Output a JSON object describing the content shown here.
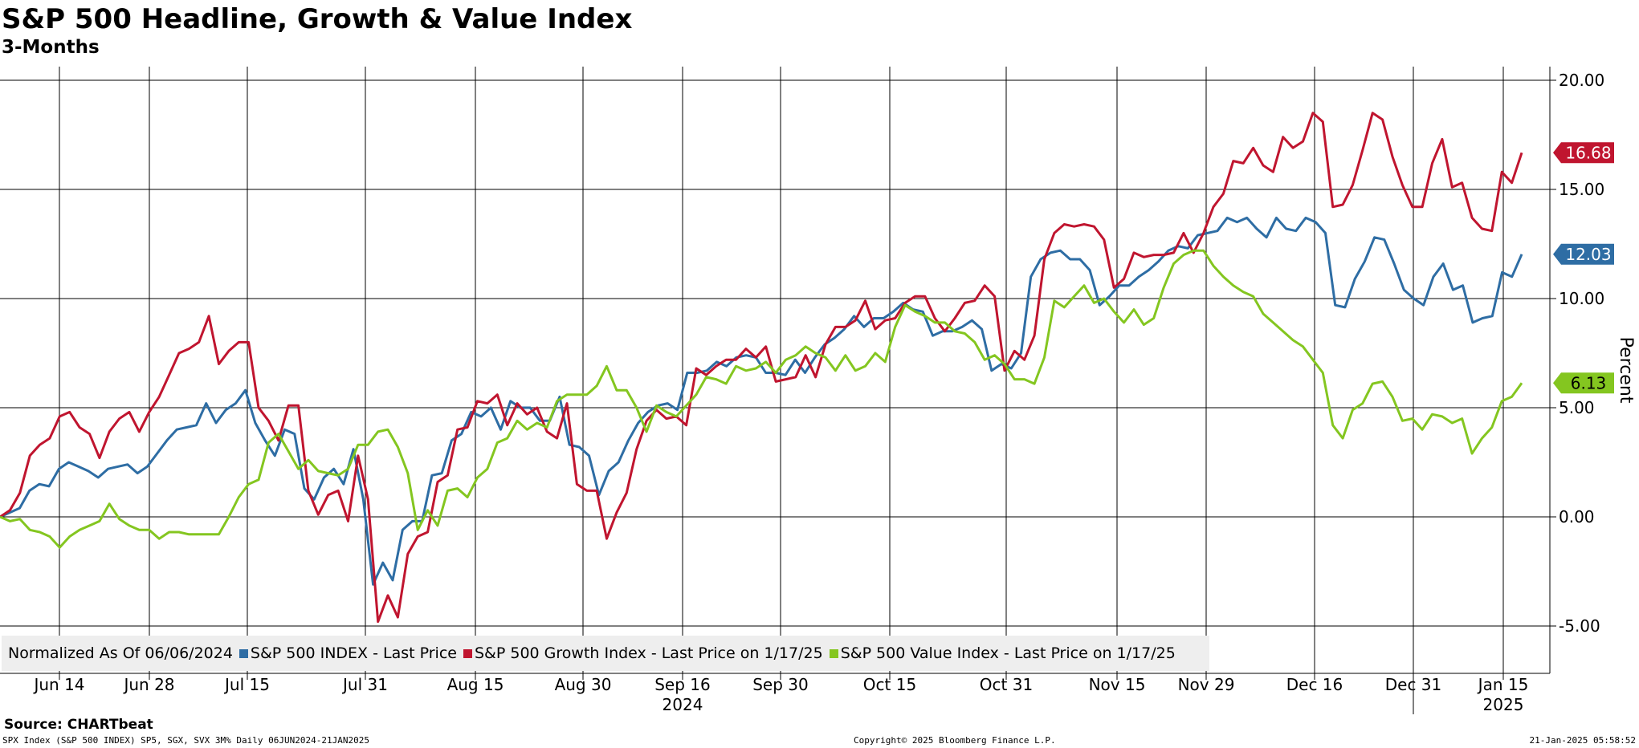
{
  "title": "S&P 500 Headline, Growth & Value Index",
  "subtitle": "3-Months",
  "legend": {
    "prefix": "Normalized As Of 06/06/2024",
    "entries": [
      "S&P 500 INDEX - Last Price",
      "S&P 500 Growth Index - Last Price on 1/17/25",
      "S&P 500 Value Index - Last Price on 1/17/25"
    ]
  },
  "source": "Source: CHARTbeat",
  "footer": {
    "left": "SPX Index (S&P 500 INDEX) SP5, SGX, SVX 3M%  Daily 06JUN2024-21JAN2025",
    "center": "Copyright© 2025 Bloomberg Finance L.P.",
    "right": "21-Jan-2025 05:58:52"
  },
  "chart_data": {
    "type": "line",
    "title": "S&P 500 Headline, Growth & Value Index",
    "subtitle": "3-Months",
    "ylabel": "Percent",
    "y_axis_side": "right",
    "ylim": [
      -7,
      21
    ],
    "yticks": [
      20,
      15,
      10,
      5,
      0,
      -5
    ],
    "ytick_labels": [
      "20.00",
      "15.00",
      "10.00",
      "5.00",
      "0.00",
      "-5.00"
    ],
    "x_ticks": [
      "Jun 14",
      "Jun 28",
      "Jul 15",
      "Jul 31",
      "Aug 15",
      "Aug 30",
      "Sep 16",
      "Sep 30",
      "Oct 15",
      "Oct 31",
      "Nov 15",
      "Nov 29",
      "Dec 16",
      "Dec 31",
      "Jan 15"
    ],
    "x_year_labels": [
      {
        "label": "2024",
        "anchor": "Sep 16"
      },
      {
        "label": "2025",
        "anchor": "Jan 15"
      }
    ],
    "grid": true,
    "legend_position": "bottom-left",
    "series": [
      {
        "name": "S&P 500 INDEX - Last Price",
        "color": "#2e6da4",
        "last_value": "12.03",
        "values": [
          0.0,
          0.2,
          0.4,
          1.2,
          1.5,
          1.4,
          2.2,
          2.5,
          2.3,
          2.1,
          1.8,
          2.2,
          2.3,
          2.4,
          2.0,
          2.3,
          2.9,
          3.5,
          4.0,
          4.1,
          4.2,
          5.2,
          4.3,
          4.9,
          5.2,
          5.8,
          4.3,
          3.5,
          2.8,
          4.0,
          3.8,
          1.3,
          0.8,
          1.8,
          2.2,
          1.5,
          3.1,
          0.8,
          -3.1,
          -2.1,
          -2.9,
          -0.6,
          -0.2,
          -0.2,
          1.9,
          2.0,
          3.5,
          3.8,
          4.8,
          4.6,
          5.0,
          4.0,
          5.3,
          5.0,
          5.0,
          4.4,
          4.4,
          5.5,
          3.3,
          3.2,
          2.8,
          1.0,
          2.1,
          2.5,
          3.5,
          4.3,
          4.8,
          5.1,
          5.2,
          4.9,
          6.6,
          6.6,
          6.7,
          7.1,
          6.9,
          7.3,
          7.4,
          7.3,
          6.6,
          6.6,
          6.5,
          7.2,
          6.6,
          7.3,
          7.9,
          8.2,
          8.6,
          9.2,
          8.7,
          9.1,
          9.1,
          9.4,
          9.8,
          9.5,
          9.4,
          8.3,
          8.5,
          8.5,
          8.7,
          9.0,
          8.6,
          6.7,
          7.0,
          6.8,
          7.5,
          11.0,
          11.8,
          12.1,
          12.2,
          11.8,
          11.8,
          11.3,
          9.7,
          10.1,
          10.6,
          10.6,
          11.0,
          11.3,
          11.7,
          12.2,
          12.4,
          12.3,
          12.9,
          13.0,
          13.1,
          13.7,
          13.5,
          13.7,
          13.2,
          12.8,
          13.7,
          13.2,
          13.1,
          13.7,
          13.5,
          13.0,
          9.7,
          9.6,
          10.9,
          11.7,
          12.8,
          12.7,
          11.6,
          10.4,
          10.0,
          9.7,
          11.0,
          11.6,
          10.4,
          10.6,
          8.9,
          9.1,
          9.2,
          11.2,
          11.0,
          12.03
        ]
      },
      {
        "name": "S&P 500 Growth Index - Last Price on 1/17/25",
        "color": "#c0152f",
        "last_value": "16.68",
        "values": [
          0.0,
          0.3,
          1.1,
          2.8,
          3.3,
          3.6,
          4.6,
          4.8,
          4.1,
          3.8,
          2.7,
          3.9,
          4.5,
          4.8,
          3.9,
          4.8,
          5.5,
          6.5,
          7.5,
          7.7,
          8.0,
          9.2,
          7.0,
          7.6,
          8.0,
          8.0,
          5.0,
          4.4,
          3.5,
          5.1,
          5.1,
          1.2,
          0.1,
          1.0,
          1.2,
          -0.2,
          2.8,
          0.8,
          -4.8,
          -3.6,
          -4.6,
          -1.7,
          -0.9,
          -0.7,
          1.6,
          1.9,
          4.0,
          4.1,
          5.3,
          5.2,
          5.6,
          4.2,
          5.2,
          4.7,
          5.0,
          3.9,
          3.6,
          5.2,
          1.5,
          1.2,
          1.2,
          -1.0,
          0.2,
          1.1,
          3.1,
          4.4,
          4.9,
          4.5,
          4.6,
          4.2,
          6.8,
          6.5,
          6.9,
          7.2,
          7.2,
          7.7,
          7.3,
          7.8,
          6.2,
          6.3,
          6.4,
          7.4,
          6.4,
          7.9,
          8.7,
          8.7,
          9.0,
          9.9,
          8.6,
          9.0,
          9.1,
          9.8,
          10.1,
          10.1,
          9.1,
          8.5,
          9.1,
          9.8,
          9.9,
          10.6,
          10.1,
          6.7,
          7.6,
          7.2,
          8.3,
          11.8,
          13.0,
          13.4,
          13.3,
          13.4,
          13.3,
          12.7,
          10.5,
          10.9,
          12.1,
          11.9,
          12.0,
          12.0,
          12.1,
          13.0,
          12.1,
          13.0,
          14.2,
          14.8,
          16.3,
          16.2,
          16.9,
          16.1,
          15.8,
          17.4,
          16.9,
          17.2,
          18.5,
          18.1,
          14.2,
          14.3,
          15.2,
          16.8,
          18.5,
          18.2,
          16.5,
          15.2,
          14.2,
          14.2,
          16.2,
          17.3,
          15.1,
          15.3,
          13.7,
          13.2,
          13.1,
          15.8,
          15.3,
          16.68
        ]
      },
      {
        "name": "S&P 500 Value Index - Last Price on 1/17/25",
        "color": "#84c620",
        "last_value": "6.13",
        "values": [
          0.0,
          -0.2,
          -0.1,
          -0.6,
          -0.7,
          -0.9,
          -1.4,
          -0.9,
          -0.6,
          -0.4,
          -0.2,
          0.6,
          -0.1,
          -0.4,
          -0.6,
          -0.6,
          -1.0,
          -0.7,
          -0.7,
          -0.8,
          -0.8,
          -0.8,
          -0.8,
          0.0,
          0.9,
          1.5,
          1.7,
          3.4,
          3.8,
          3.0,
          2.2,
          2.6,
          2.1,
          2.0,
          1.9,
          2.2,
          3.3,
          3.3,
          3.9,
          4.0,
          3.2,
          2.0,
          -0.6,
          0.3,
          -0.4,
          1.2,
          1.3,
          0.9,
          1.8,
          2.2,
          3.4,
          3.6,
          4.4,
          4.0,
          4.3,
          4.1,
          5.3,
          5.6,
          5.6,
          5.6,
          6.0,
          6.9,
          5.8,
          5.8,
          5.0,
          3.9,
          5.1,
          4.8,
          4.6,
          5.1,
          5.6,
          6.4,
          6.3,
          6.1,
          6.9,
          6.7,
          6.8,
          7.1,
          6.6,
          7.2,
          7.4,
          7.8,
          7.5,
          7.3,
          6.7,
          7.4,
          6.7,
          6.9,
          7.5,
          7.1,
          8.7,
          9.7,
          9.4,
          9.2,
          8.9,
          8.9,
          8.5,
          8.4,
          8.0,
          7.2,
          7.4,
          7.0,
          6.3,
          6.3,
          6.1,
          7.3,
          9.9,
          9.6,
          10.1,
          10.6,
          9.8,
          10.0,
          9.4,
          8.9,
          9.5,
          8.8,
          9.1,
          10.5,
          11.6,
          12.0,
          12.2,
          12.2,
          11.5,
          11.0,
          10.6,
          10.3,
          10.1,
          9.3,
          8.9,
          8.5,
          8.1,
          7.8,
          7.2,
          6.6,
          4.2,
          3.6,
          4.9,
          5.2,
          6.1,
          6.2,
          5.5,
          4.4,
          4.5,
          4.0,
          4.7,
          4.6,
          4.3,
          4.5,
          2.9,
          3.6,
          4.1,
          5.3,
          5.5,
          6.13
        ]
      }
    ]
  }
}
